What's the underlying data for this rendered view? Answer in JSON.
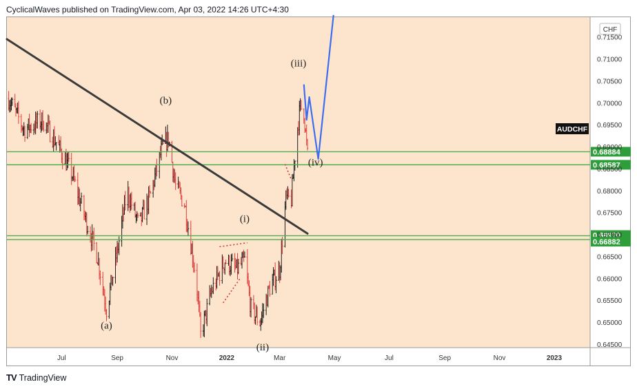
{
  "header": {
    "title": "CyclicalWaves published on TradingView.com, Apr 03, 2022 14:26 UTC+4:30"
  },
  "footer": {
    "brand": "TradingView",
    "logo": "TV"
  },
  "colors": {
    "background": "#fce5cc",
    "up": "#1a1a1a",
    "down": "#e03a3a",
    "support": "#4caf50",
    "trendline": "#3a3a3a",
    "projection": "#3c6cf0",
    "dotted": "#d33a3a",
    "price_label_bg": "#2e9e3a"
  },
  "chart_data": {
    "type": "candlestick",
    "symbol": "AUDCHF",
    "currency": "CHF",
    "x_ticks": [
      "Jul",
      "Sep",
      "Nov",
      "2022",
      "Mar",
      "May",
      "Jul",
      "Sep",
      "Nov",
      "2023"
    ],
    "y_ticks": [
      "0.71500",
      "0.71000",
      "0.70500",
      "0.70000",
      "0.69500",
      "0.69000",
      "0.68500",
      "0.68000",
      "0.67500",
      "0.67000",
      "0.66500",
      "0.66000",
      "0.65500",
      "0.65000",
      "0.64500"
    ],
    "ylim": [
      0.6442,
      0.7195
    ],
    "horizontal_levels": [
      {
        "price": 0.68884,
        "label": "0.68884"
      },
      {
        "price": 0.68587,
        "label": "0.68587"
      },
      {
        "price": 0.6697,
        "label": "0.66970"
      },
      {
        "price": 0.66882,
        "label": "0.66882"
      }
    ],
    "wave_labels": [
      {
        "text": "(a)",
        "date": "2021-08-20",
        "price": 0.6485
      },
      {
        "text": "(b)",
        "date": "2021-10-25",
        "price": 0.6998
      },
      {
        "text": "(i)",
        "date": "2022-01-21",
        "price": 0.6728
      },
      {
        "text": "(ii)",
        "date": "2022-02-10",
        "price": 0.6436
      },
      {
        "text": "(iii)",
        "date": "2022-03-22",
        "price": 0.7083
      },
      {
        "text": "(iv)",
        "date": "2022-04-10",
        "price": 0.6857
      }
    ],
    "trendline": [
      {
        "date": "2021-05-01",
        "price": 0.7145
      },
      {
        "date": "2022-04-01",
        "price": 0.6702
      }
    ],
    "projection": [
      {
        "date": "2022-03-28",
        "price": 0.7042
      },
      {
        "date": "2022-03-31",
        "price": 0.6961
      },
      {
        "date": "2022-04-03",
        "price": 0.7013
      },
      {
        "date": "2022-04-13",
        "price": 0.6872
      },
      {
        "date": "2022-04-30",
        "price": 0.72
      }
    ],
    "dotted_wedge": [
      [
        {
          "date": "2021-12-24",
          "price": 0.6672
        },
        {
          "date": "2022-01-24",
          "price": 0.6681
        }
      ],
      [
        {
          "date": "2021-12-28",
          "price": 0.6544
        },
        {
          "date": "2022-01-16",
          "price": 0.66
        }
      ],
      [
        {
          "date": "2022-03-07",
          "price": 0.686
        },
        {
          "date": "2022-03-14",
          "price": 0.6825
        }
      ]
    ],
    "price_path": [
      {
        "date": "2021-05-03",
        "price": 0.701
      },
      {
        "date": "2021-05-20",
        "price": 0.694
      },
      {
        "date": "2021-06-10",
        "price": 0.696
      },
      {
        "date": "2021-06-25",
        "price": 0.691
      },
      {
        "date": "2021-07-12",
        "price": 0.684
      },
      {
        "date": "2021-07-30",
        "price": 0.672
      },
      {
        "date": "2021-08-10",
        "price": 0.665
      },
      {
        "date": "2021-08-20",
        "price": 0.653
      },
      {
        "date": "2021-09-01",
        "price": 0.666
      },
      {
        "date": "2021-09-12",
        "price": 0.68
      },
      {
        "date": "2021-09-25",
        "price": 0.672
      },
      {
        "date": "2021-10-08",
        "price": 0.679
      },
      {
        "date": "2021-10-20",
        "price": 0.689
      },
      {
        "date": "2021-10-28",
        "price": 0.692
      },
      {
        "date": "2021-11-05",
        "price": 0.681
      },
      {
        "date": "2021-11-15",
        "price": 0.677
      },
      {
        "date": "2021-11-28",
        "price": 0.66
      },
      {
        "date": "2021-12-03",
        "price": 0.647
      },
      {
        "date": "2021-12-15",
        "price": 0.657
      },
      {
        "date": "2021-12-30",
        "price": 0.664
      },
      {
        "date": "2022-01-12",
        "price": 0.662
      },
      {
        "date": "2022-01-21",
        "price": 0.664
      },
      {
        "date": "2022-01-28",
        "price": 0.653
      },
      {
        "date": "2022-02-07",
        "price": 0.65
      },
      {
        "date": "2022-02-18",
        "price": 0.658
      },
      {
        "date": "2022-03-01",
        "price": 0.662
      },
      {
        "date": "2022-03-08",
        "price": 0.678
      },
      {
        "date": "2022-03-14",
        "price": 0.678
      },
      {
        "date": "2022-03-20",
        "price": 0.693
      },
      {
        "date": "2022-03-24",
        "price": 0.699
      },
      {
        "date": "2022-03-28",
        "price": 0.698
      },
      {
        "date": "2022-04-01",
        "price": 0.688
      }
    ]
  }
}
